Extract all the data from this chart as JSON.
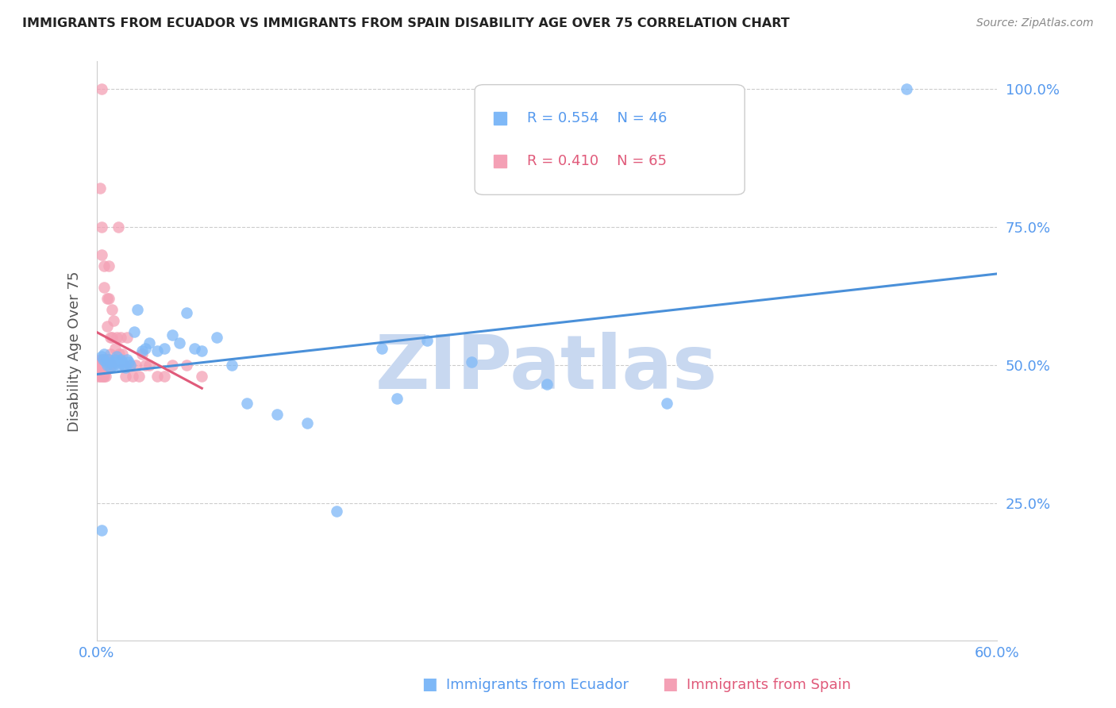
{
  "title": "IMMIGRANTS FROM ECUADOR VS IMMIGRANTS FROM SPAIN DISABILITY AGE OVER 75 CORRELATION CHART",
  "source": "Source: ZipAtlas.com",
  "xlabel_bottom": "Immigrants from Ecuador",
  "xlabel_bottom2": "Immigrants from Spain",
  "ylabel": "Disability Age Over 75",
  "xlim": [
    0.0,
    0.6
  ],
  "ylim": [
    0.0,
    1.05
  ],
  "yticks": [
    0.25,
    0.5,
    0.75,
    1.0
  ],
  "ytick_labels": [
    "25.0%",
    "50.0%",
    "75.0%",
    "100.0%"
  ],
  "xticks": [
    0.0,
    0.1,
    0.2,
    0.3,
    0.4,
    0.5,
    0.6
  ],
  "xtick_labels": [
    "0.0%",
    "",
    "",
    "",
    "",
    "",
    "60.0%"
  ],
  "color_ecuador": "#7EB8F7",
  "color_spain": "#F4A0B5",
  "line_color_ecuador": "#4A90D9",
  "line_color_spain": "#E05A7A",
  "legend_r_ecuador": "R = 0.554",
  "legend_n_ecuador": "N = 46",
  "legend_r_spain": "R = 0.410",
  "legend_n_spain": "N = 65",
  "ecuador_x": [
    0.003,
    0.004,
    0.005,
    0.006,
    0.007,
    0.008,
    0.009,
    0.01,
    0.011,
    0.012,
    0.013,
    0.014,
    0.015,
    0.016,
    0.017,
    0.018,
    0.019,
    0.02,
    0.021,
    0.022,
    0.025,
    0.027,
    0.03,
    0.032,
    0.035,
    0.04,
    0.045,
    0.05,
    0.055,
    0.06,
    0.065,
    0.07,
    0.08,
    0.09,
    0.1,
    0.12,
    0.14,
    0.16,
    0.19,
    0.2,
    0.22,
    0.25,
    0.3,
    0.38,
    0.54,
    0.003
  ],
  "ecuador_y": [
    0.515,
    0.51,
    0.52,
    0.505,
    0.5,
    0.51,
    0.495,
    0.505,
    0.5,
    0.51,
    0.515,
    0.505,
    0.5,
    0.51,
    0.505,
    0.5,
    0.495,
    0.51,
    0.505,
    0.5,
    0.56,
    0.6,
    0.525,
    0.53,
    0.54,
    0.525,
    0.53,
    0.555,
    0.54,
    0.595,
    0.53,
    0.525,
    0.55,
    0.5,
    0.43,
    0.41,
    0.395,
    0.235,
    0.53,
    0.44,
    0.545,
    0.505,
    0.465,
    0.43,
    1.0,
    0.2
  ],
  "spain_x": [
    0.001,
    0.001,
    0.001,
    0.002,
    0.002,
    0.002,
    0.002,
    0.003,
    0.003,
    0.003,
    0.003,
    0.003,
    0.003,
    0.004,
    0.004,
    0.004,
    0.004,
    0.005,
    0.005,
    0.005,
    0.005,
    0.005,
    0.005,
    0.006,
    0.006,
    0.006,
    0.006,
    0.007,
    0.007,
    0.007,
    0.007,
    0.008,
    0.008,
    0.008,
    0.008,
    0.009,
    0.009,
    0.009,
    0.01,
    0.01,
    0.01,
    0.011,
    0.012,
    0.013,
    0.014,
    0.015,
    0.016,
    0.017,
    0.018,
    0.019,
    0.02,
    0.022,
    0.024,
    0.026,
    0.028,
    0.03,
    0.032,
    0.035,
    0.04,
    0.045,
    0.05,
    0.06,
    0.07,
    0.002,
    0.003
  ],
  "spain_y": [
    0.5,
    0.49,
    0.48,
    0.51,
    0.5,
    0.49,
    0.48,
    0.75,
    0.7,
    0.51,
    0.5,
    0.49,
    0.48,
    0.51,
    0.5,
    0.49,
    0.48,
    0.68,
    0.64,
    0.51,
    0.5,
    0.49,
    0.48,
    0.51,
    0.5,
    0.49,
    0.48,
    0.62,
    0.57,
    0.51,
    0.5,
    0.68,
    0.62,
    0.51,
    0.5,
    0.55,
    0.52,
    0.5,
    0.6,
    0.55,
    0.5,
    0.58,
    0.53,
    0.55,
    0.75,
    0.52,
    0.55,
    0.52,
    0.5,
    0.48,
    0.55,
    0.5,
    0.48,
    0.5,
    0.48,
    0.52,
    0.5,
    0.5,
    0.48,
    0.48,
    0.5,
    0.5,
    0.48,
    0.82,
    1.0
  ],
  "watermark": "ZIPatlas",
  "watermark_color": "#C8D8F0",
  "grid_color": "#CCCCCC",
  "tick_color": "#5599EE",
  "background_color": "#FFFFFF"
}
